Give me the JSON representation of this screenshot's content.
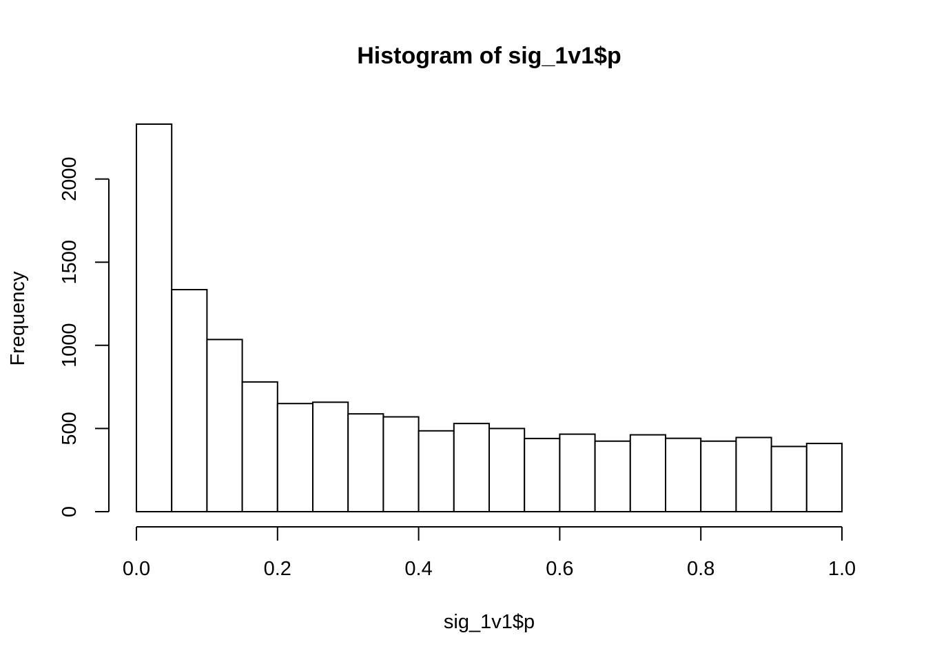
{
  "chart_data": {
    "type": "bar",
    "subtype": "histogram",
    "title": "Histogram of sig_1v1$p",
    "xlabel": "sig_1v1$p",
    "ylabel": "Frequency",
    "bin_edges": [
      0.0,
      0.05,
      0.1,
      0.15,
      0.2,
      0.25,
      0.3,
      0.35,
      0.4,
      0.45,
      0.5,
      0.55,
      0.6,
      0.65,
      0.7,
      0.75,
      0.8,
      0.85,
      0.9,
      0.95,
      1.0
    ],
    "values": [
      2330,
      1335,
      1035,
      780,
      650,
      658,
      588,
      570,
      486,
      530,
      500,
      440,
      466,
      424,
      462,
      441,
      424,
      446,
      392,
      410
    ],
    "xlim": [
      0.0,
      1.0
    ],
    "ylim": [
      0,
      2330
    ],
    "x_ticks": [
      {
        "value": 0.0,
        "label": "0.0"
      },
      {
        "value": 0.2,
        "label": "0.2"
      },
      {
        "value": 0.4,
        "label": "0.4"
      },
      {
        "value": 0.6,
        "label": "0.6"
      },
      {
        "value": 0.8,
        "label": "0.8"
      },
      {
        "value": 1.0,
        "label": "1.0"
      }
    ],
    "y_ticks": [
      {
        "value": 0,
        "label": "0"
      },
      {
        "value": 500,
        "label": "500"
      },
      {
        "value": 1000,
        "label": "1000"
      },
      {
        "value": 1500,
        "label": "1500"
      },
      {
        "value": 2000,
        "label": "2000"
      }
    ],
    "grid": false,
    "legend": "none",
    "bar_fill": "#ffffff",
    "bar_stroke": "#000000"
  }
}
